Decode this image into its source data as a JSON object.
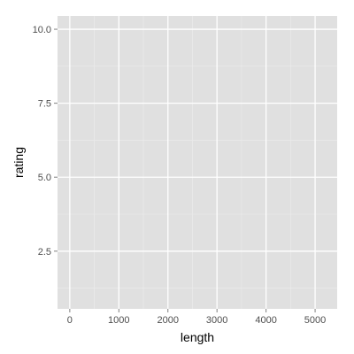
{
  "chart_data": {
    "type": "scatter",
    "title": "",
    "xlabel": "length",
    "ylabel": "rating",
    "xlim": [
      -250,
      5450
    ],
    "ylim": [
      0.55,
      10.45
    ],
    "x_ticks": [
      0,
      1000,
      2000,
      3000,
      4000,
      5000
    ],
    "x_tick_labels": [
      "0",
      "1000",
      "2000",
      "3000",
      "4000",
      "5000"
    ],
    "y_ticks": [
      2.5,
      5.0,
      7.5,
      10.0
    ],
    "y_tick_labels": [
      "2.5",
      "5.0",
      "7.5",
      "10.0"
    ],
    "x_minor_ticks": [
      500,
      1500,
      2500,
      3500,
      4500
    ],
    "y_minor_ticks": [
      1.25,
      3.75,
      6.25,
      8.75
    ],
    "points": [],
    "grid": true,
    "colors": {
      "panel_background": "#e0e0e0",
      "grid_major": "#ffffff",
      "grid_minor": "#ececec",
      "tick_mark": "#7f7f7f",
      "tick_label": "#4d4d4d"
    }
  }
}
